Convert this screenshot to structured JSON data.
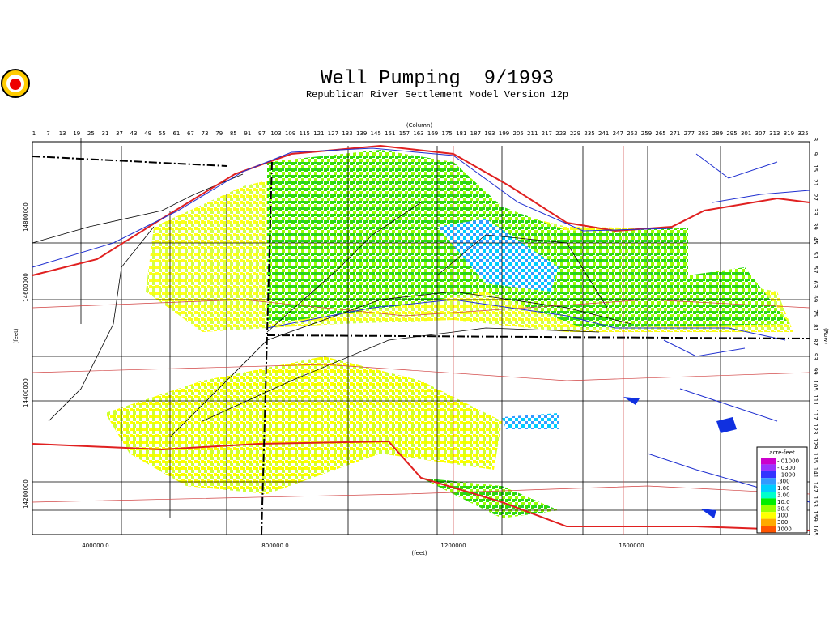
{
  "header": {
    "title": "Well Pumping  9/1993",
    "subtitle": "Republican River Settlement Model Version 12p"
  },
  "axes": {
    "column_title": "(Column)",
    "columns": [
      1,
      7,
      13,
      19,
      25,
      31,
      37,
      43,
      49,
      55,
      61,
      67,
      73,
      79,
      85,
      91,
      97,
      103,
      109,
      115,
      121,
      127,
      133,
      139,
      145,
      151,
      157,
      163,
      169,
      175,
      181,
      187,
      193,
      199,
      205,
      211,
      217,
      223,
      229,
      235,
      241,
      247,
      253,
      259,
      265,
      271,
      277,
      283,
      289,
      295,
      301,
      307,
      313,
      319,
      325
    ],
    "row_title": "(Row)",
    "rows": [
      3,
      9,
      15,
      21,
      27,
      33,
      39,
      45,
      51,
      57,
      63,
      69,
      75,
      81,
      87,
      93,
      99,
      105,
      111,
      117,
      123,
      129,
      135,
      141,
      147,
      153,
      159,
      165
    ],
    "y_title": "(feet)",
    "y_labels": [
      "14800000",
      "14600000",
      "14400000",
      "14200000"
    ],
    "x_title": "(feet)",
    "x_labels": [
      "400000.0",
      "800000.0",
      "1200000",
      "1600000"
    ]
  },
  "legend": {
    "title": "acre-feet",
    "items": [
      {
        "label": "-.01000",
        "color": "#cc00cc"
      },
      {
        "label": "-.0300",
        "color": "#9933ff"
      },
      {
        "label": "-.1000",
        "color": "#3333ff"
      },
      {
        "label": ".300",
        "color": "#3399ff"
      },
      {
        "label": "1.00",
        "color": "#00ccff"
      },
      {
        "label": "3.00",
        "color": "#00ffcc"
      },
      {
        "label": "10.0",
        "color": "#00ee00"
      },
      {
        "label": "30.0",
        "color": "#99ff00"
      },
      {
        "label": "100",
        "color": "#ffff00"
      },
      {
        "label": "300",
        "color": "#ffaa00"
      },
      {
        "label": "1000",
        "color": "#ff5500"
      }
    ]
  }
}
